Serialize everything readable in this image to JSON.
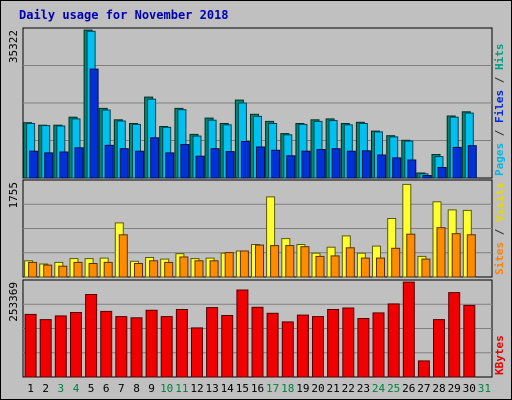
{
  "chart_data": {
    "type": "bar",
    "title": "Daily usage for November 2018",
    "categories": [
      "1",
      "2",
      "3",
      "4",
      "5",
      "6",
      "7",
      "8",
      "9",
      "10",
      "11",
      "12",
      "13",
      "14",
      "15",
      "16",
      "17",
      "18",
      "19",
      "20",
      "21",
      "22",
      "23",
      "24",
      "25",
      "26",
      "27",
      "28",
      "29",
      "30",
      "31"
    ],
    "weekend_days": [
      "3",
      "4",
      "10",
      "11",
      "17",
      "18",
      "24",
      "25",
      "31"
    ],
    "panels": [
      {
        "id": "pages-files-hits",
        "max_label": "35322",
        "max": 35322,
        "ylabel_parts": [
          {
            "text": "Pages",
            "color": "#00b8e8"
          },
          {
            "text": " / ",
            "color": "#303030"
          },
          {
            "text": "Files",
            "color": "#0028e0"
          },
          {
            "text": " / ",
            "color": "#303030"
          },
          {
            "text": "Hits",
            "color": "#00a080"
          }
        ],
        "series": [
          {
            "name": "Hits",
            "color": "#008870",
            "values": [
              13200,
              12600,
              12600,
              14500,
              35300,
              16600,
              13900,
              13000,
              19300,
              12300,
              16600,
              10400,
              14300,
              13000,
              18600,
              15200,
              13500,
              10600,
              13000,
              13900,
              14100,
              13000,
              13300,
              11200,
              10100,
              0,
              0,
              0,
              0,
              0,
              0
            ]
          },
          {
            "name": "Files",
            "color": "#00c0f0",
            "values": [
              13000,
              12500,
              12400,
              14100,
              35000,
              16200,
              13600,
              12800,
              18800,
              12100,
              16300,
              10000,
              13800,
              12700,
              17900,
              14700,
              13000,
              10300,
              12800,
              13500,
              13700,
              12700,
              13000,
              11000,
              9800,
              0,
              0,
              0,
              0,
              0,
              0
            ]
          },
          {
            "name": "Pages",
            "color": "#0030d8",
            "values": [
              6400,
              6000,
              6200,
              7200,
              26000,
              7800,
              7000,
              6400,
              9600,
              6000,
              8000,
              5200,
              7000,
              6300,
              8700,
              7400,
              6600,
              5300,
              6400,
              6800,
              7000,
              6400,
              6500,
              5500,
              4800,
              0,
              0,
              0,
              0,
              0,
              0
            ]
          }
        ],
        "values_cont": {
          "Hits": [
            9000,
            1200,
            5600,
            14800,
            15800
          ],
          "Files": [
            8800,
            1000,
            5100,
            14500,
            15500
          ],
          "Pages": [
            4300,
            600,
            2500,
            7300,
            7700
          ]
        }
      },
      {
        "id": "sites-visits",
        "max_label": "1755",
        "max": 1755,
        "ylabel_parts": [
          {
            "text": "Sites",
            "color": "#ff8000"
          },
          {
            "text": " / ",
            "color": "#303030"
          },
          {
            "text": "Visits",
            "color": "#e8d800"
          }
        ],
        "series": [
          {
            "name": "Visits",
            "color": "#ffff30",
            "values": [
              300,
              240,
              270,
              340,
              340,
              350,
              1000,
              290,
              360,
              330,
              430,
              340,
              350,
              440,
              480,
              600,
              1480,
              710,
              600,
              440,
              550,
              760,
              440,
              570,
              1080,
              1710,
              380,
              1390,
              1240,
              1230,
              0
            ]
          },
          {
            "name": "Sites",
            "color": "#ff8c00",
            "values": [
              270,
              220,
              200,
              270,
              250,
              270,
              780,
              250,
              300,
              270,
              370,
              300,
              300,
              450,
              480,
              590,
              580,
              580,
              560,
              380,
              390,
              540,
              350,
              350,
              530,
              790,
              330,
              910,
              800,
              780,
              0
            ]
          }
        ],
        "values_cont": {
          "Visits": [
            1230
          ],
          "Sites": [
            780
          ]
        }
      },
      {
        "id": "kbytes",
        "max_label": "253369",
        "max": 253369,
        "ylabel_parts": [
          {
            "text": "KBytes",
            "color": "#e80000"
          }
        ],
        "series": [
          {
            "name": "KBytes",
            "color": "#f00000",
            "values": [
              167000,
              153000,
              163000,
              172000,
              220000,
              175000,
              161000,
              158000,
              178000,
              161000,
              180000,
              131000,
              185000,
              164000,
              232000,
              186000,
              170000,
              147000,
              165000,
              161000,
              180000,
              184000,
              156000,
              171000,
              195000,
              253000,
              43000,
              153000,
              225000,
              191000,
              0
            ]
          }
        ]
      }
    ]
  }
}
